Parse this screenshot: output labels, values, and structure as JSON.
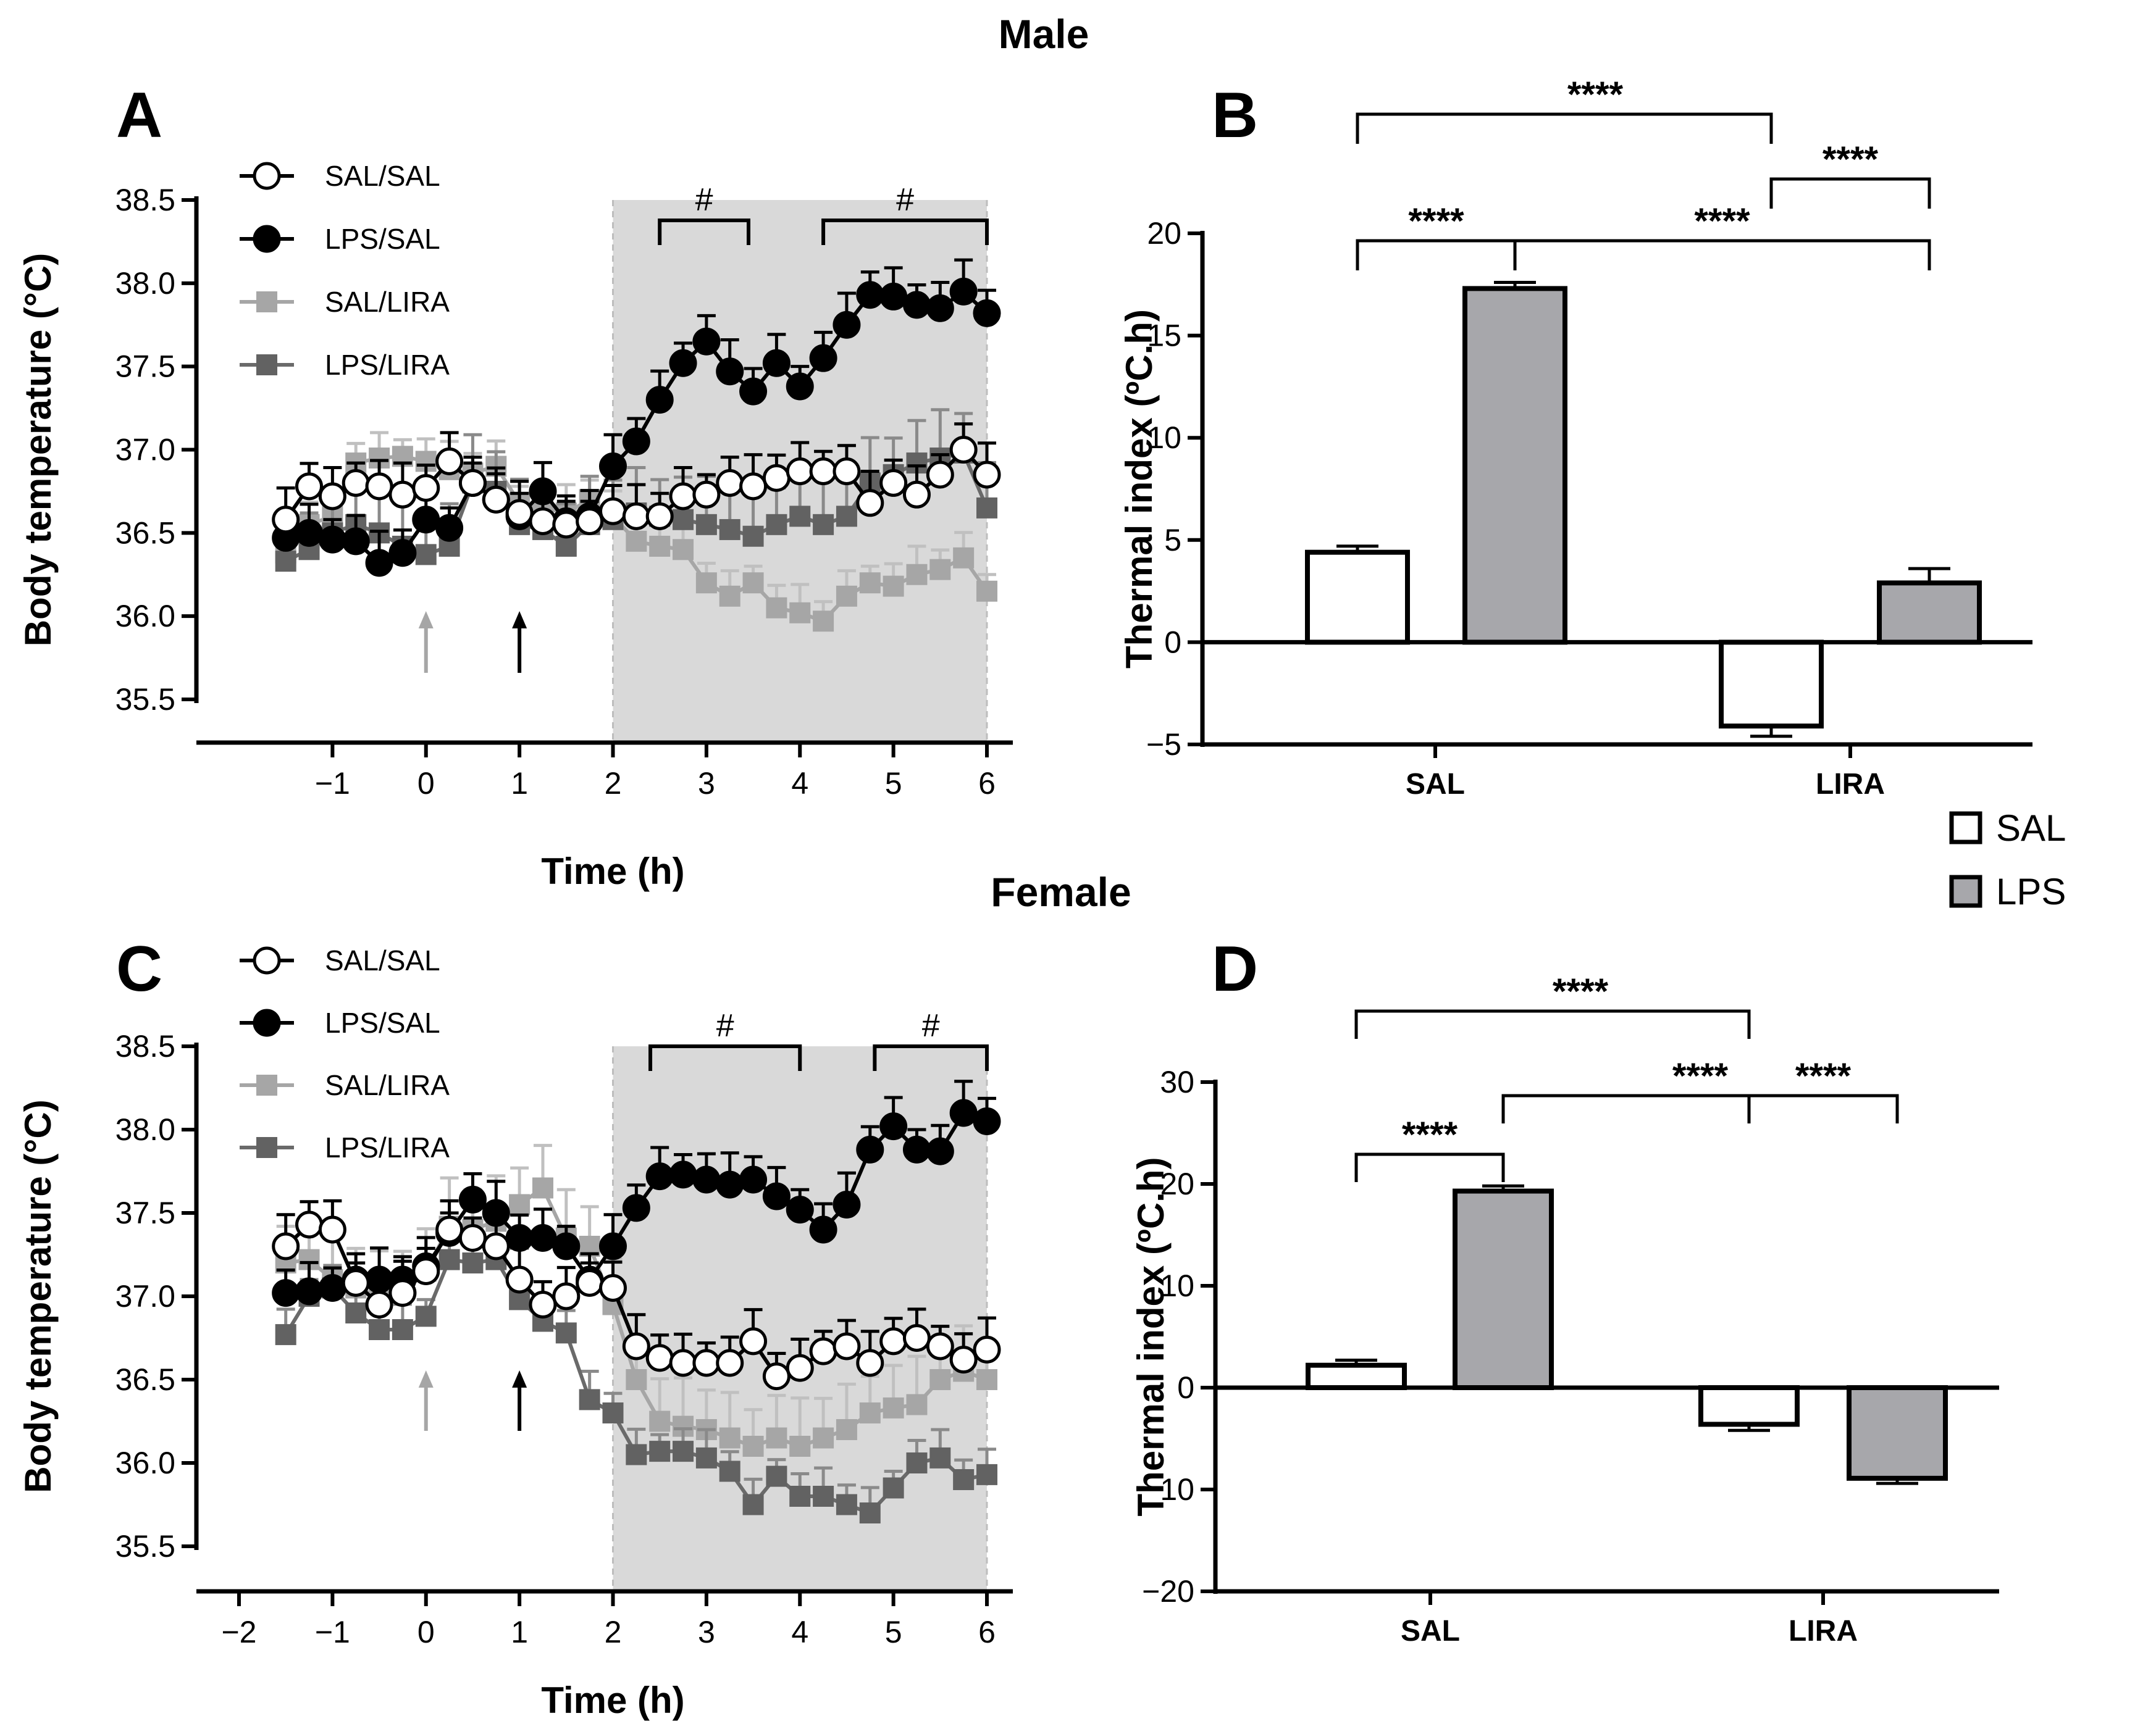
{
  "sections": {
    "top": "Male",
    "bottom": "Female"
  },
  "group_legend": [
    "SAL",
    "LPS"
  ],
  "chart_data": [
    {
      "panel": "A",
      "type": "line",
      "xlabel": "Time (h)",
      "ylabel": "Body temperature (°C)",
      "xlim": [
        -2,
        6
      ],
      "ylim": [
        35.5,
        38.5
      ],
      "xticks": [
        "−1",
        "0",
        "1",
        "2",
        "3",
        "4",
        "5",
        "6"
      ],
      "yticks": [
        "35.5",
        "36.0",
        "36.5",
        "37.0",
        "37.5",
        "38.0",
        "38.5"
      ],
      "shaded_region": [
        2,
        6
      ],
      "arrows": [
        {
          "x": 0,
          "color": "#a6a6a6"
        },
        {
          "x": 1,
          "color": "#000000"
        }
      ],
      "brackets": [
        {
          "x1": 2.5,
          "x2": 3.45,
          "label": "#"
        },
        {
          "x1": 4.25,
          "x2": 6,
          "label": "#"
        }
      ],
      "x": [
        -1.5,
        -1.25,
        -1.0,
        -0.75,
        -0.5,
        -0.25,
        0.0,
        0.25,
        0.5,
        0.75,
        1.0,
        1.25,
        1.5,
        1.75,
        2.0,
        2.25,
        2.5,
        2.75,
        3.0,
        3.25,
        3.5,
        3.75,
        4.0,
        4.25,
        4.5,
        4.75,
        5.0,
        5.25,
        5.5,
        5.75,
        6.0
      ],
      "series": [
        {
          "name": "SAL/LIRA",
          "values": [
            36.38,
            36.55,
            36.6,
            36.92,
            36.95,
            36.96,
            36.93,
            36.88,
            36.86,
            36.9,
            36.68,
            36.65,
            36.62,
            36.7,
            36.6,
            36.45,
            36.42,
            36.4,
            36.2,
            36.12,
            36.2,
            36.05,
            36.02,
            35.97,
            36.12,
            36.2,
            36.18,
            36.25,
            36.28,
            36.35,
            36.15
          ]
        },
        {
          "name": "LPS/LIRA",
          "values": [
            36.33,
            36.4,
            36.5,
            36.55,
            36.5,
            36.42,
            36.37,
            36.42,
            36.8,
            36.75,
            36.55,
            36.52,
            36.42,
            36.55,
            36.58,
            36.62,
            36.6,
            36.58,
            36.55,
            36.52,
            36.48,
            36.55,
            36.6,
            36.55,
            36.6,
            36.8,
            36.85,
            36.92,
            36.95,
            36.98,
            36.65
          ]
        },
        {
          "name": "LPS/SAL",
          "values": [
            36.47,
            36.5,
            36.46,
            36.45,
            36.32,
            36.38,
            36.58,
            36.53,
            36.8,
            36.7,
            36.6,
            36.75,
            36.57,
            36.6,
            36.9,
            37.05,
            37.3,
            37.52,
            37.65,
            37.47,
            37.35,
            37.52,
            37.38,
            37.55,
            37.75,
            37.93,
            37.92,
            37.87,
            37.85,
            37.95,
            37.82
          ]
        },
        {
          "name": "SAL/SAL",
          "values": [
            36.58,
            36.78,
            36.72,
            36.8,
            36.78,
            36.73,
            36.77,
            36.93,
            36.8,
            36.7,
            36.62,
            36.57,
            36.55,
            36.57,
            36.63,
            36.6,
            36.6,
            36.72,
            36.73,
            36.8,
            36.78,
            36.83,
            36.87,
            36.87,
            36.87,
            36.68,
            36.8,
            36.73,
            36.85,
            37.0,
            36.85
          ]
        }
      ]
    },
    {
      "panel": "B",
      "type": "bar",
      "xlabel": "",
      "ylabel": "Thermal index (ºC.h)",
      "categories": [
        "SAL",
        "LIRA"
      ],
      "ylim": [
        -5,
        20
      ],
      "yticks": [
        "−5",
        "0",
        "5",
        "10",
        "15",
        "20"
      ],
      "series": [
        {
          "name": "SAL",
          "values": [
            4.4,
            -4.1
          ],
          "errors": [
            0.3,
            0.5
          ]
        },
        {
          "name": "LPS",
          "values": [
            17.3,
            2.9
          ],
          "errors": [
            0.3,
            0.7
          ]
        }
      ],
      "significance": [
        {
          "from": "SAL/SAL",
          "to": "SAL/LPS",
          "label": "****"
        },
        {
          "from": "LIRA/SAL",
          "to": "LIRA/LPS",
          "label": "****"
        },
        {
          "from": "SAL/SAL",
          "to": "LIRA/SAL",
          "label": "****"
        },
        {
          "from": "SAL/LPS",
          "to": "LIRA/LPS",
          "label": "****"
        }
      ]
    },
    {
      "panel": "C",
      "type": "line",
      "xlabel": "Time (h)",
      "ylabel": "Body temperature (°C)",
      "xlim": [
        -2,
        6
      ],
      "ylim": [
        35.5,
        38.5
      ],
      "xticks": [
        "−2",
        "−1",
        "0",
        "1",
        "2",
        "3",
        "4",
        "5",
        "6"
      ],
      "yticks": [
        "35.5",
        "36.0",
        "36.5",
        "37.0",
        "37.5",
        "38.0",
        "38.5"
      ],
      "shaded_region": [
        2,
        6
      ],
      "arrows": [
        {
          "x": 0,
          "color": "#a6a6a6"
        },
        {
          "x": 1,
          "color": "#000000"
        }
      ],
      "brackets": [
        {
          "x1": 2.4,
          "x2": 4.0,
          "label": "#"
        },
        {
          "x1": 4.8,
          "x2": 6,
          "label": "#"
        }
      ],
      "x": [
        -1.5,
        -1.25,
        -1.0,
        -0.75,
        -0.5,
        -0.25,
        0.0,
        0.25,
        0.5,
        0.75,
        1.0,
        1.25,
        1.5,
        1.75,
        2.0,
        2.25,
        2.5,
        2.75,
        3.0,
        3.25,
        3.5,
        3.75,
        4.0,
        4.25,
        4.5,
        4.75,
        5.0,
        5.25,
        5.5,
        5.75,
        6.0
      ],
      "series": [
        {
          "name": "SAL/LIRA",
          "values": [
            37.2,
            37.22,
            37.1,
            37.05,
            37.0,
            37.05,
            37.15,
            37.42,
            37.4,
            37.45,
            37.55,
            37.65,
            37.35,
            37.3,
            36.95,
            36.5,
            36.25,
            36.22,
            36.2,
            36.15,
            36.1,
            36.15,
            36.1,
            36.15,
            36.2,
            36.3,
            36.33,
            36.35,
            36.5,
            36.55,
            36.5
          ]
        },
        {
          "name": "LPS/LIRA",
          "values": [
            36.77,
            37.0,
            37.05,
            36.9,
            36.8,
            36.8,
            36.88,
            37.22,
            37.2,
            37.22,
            36.98,
            36.85,
            36.78,
            36.38,
            36.3,
            36.05,
            36.07,
            36.07,
            36.03,
            35.95,
            35.75,
            35.92,
            35.8,
            35.8,
            35.75,
            35.7,
            35.85,
            36.0,
            36.03,
            35.9,
            35.93
          ]
        },
        {
          "name": "LPS/SAL",
          "values": [
            37.02,
            37.03,
            37.05,
            37.1,
            37.1,
            37.1,
            37.18,
            37.38,
            37.58,
            37.5,
            37.35,
            37.35,
            37.3,
            37.1,
            37.3,
            37.53,
            37.72,
            37.73,
            37.7,
            37.67,
            37.7,
            37.6,
            37.52,
            37.4,
            37.55,
            37.88,
            38.02,
            37.88,
            37.87,
            38.1,
            38.05
          ]
        },
        {
          "name": "SAL/SAL",
          "values": [
            37.3,
            37.43,
            37.4,
            37.08,
            36.95,
            37.02,
            37.15,
            37.4,
            37.35,
            37.3,
            37.1,
            36.95,
            37.0,
            37.08,
            37.05,
            36.7,
            36.63,
            36.6,
            36.6,
            36.6,
            36.73,
            36.52,
            36.57,
            36.67,
            36.7,
            36.6,
            36.73,
            36.75,
            36.7,
            36.62,
            36.68
          ]
        }
      ]
    },
    {
      "panel": "D",
      "type": "bar",
      "xlabel": "",
      "ylabel": "Thermal index (ºC.h)",
      "categories": [
        "SAL",
        "LIRA"
      ],
      "ylim": [
        -20,
        30
      ],
      "yticks": [
        "−20",
        "−10",
        "0",
        "10",
        "20",
        "30"
      ],
      "series": [
        {
          "name": "SAL",
          "values": [
            2.2,
            -3.6
          ],
          "errors": [
            0.5,
            0.6
          ]
        },
        {
          "name": "LPS",
          "values": [
            19.3,
            -8.9
          ],
          "errors": [
            0.5,
            0.5
          ]
        }
      ],
      "significance": [
        {
          "from": "SAL/SAL",
          "to": "SAL/LPS",
          "label": "****"
        },
        {
          "from": "LIRA/SAL",
          "to": "LIRA/LPS",
          "label": "****"
        },
        {
          "from": "SAL/SAL",
          "to": "LIRA/SAL",
          "label": "****"
        },
        {
          "from": "SAL/LPS",
          "to": "LIRA/LPS",
          "label": "****"
        }
      ]
    }
  ]
}
